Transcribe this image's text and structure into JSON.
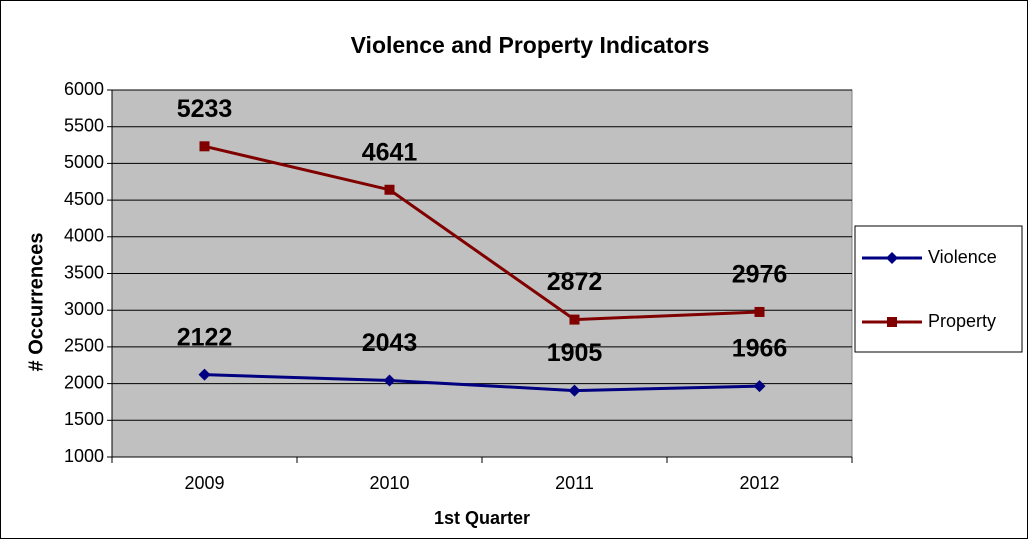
{
  "chart_data": {
    "type": "line",
    "title": "Violence and Property Indicators",
    "x_label": "1st Quarter",
    "y_label": "# Occurrences",
    "categories": [
      "2009",
      "2010",
      "2011",
      "2012"
    ],
    "series": [
      {
        "name": "Violence",
        "color": "#000080",
        "marker": "diamond",
        "values": [
          2122,
          2043,
          1905,
          1966
        ]
      },
      {
        "name": "Property",
        "color": "#800000",
        "marker": "square",
        "values": [
          5233,
          4641,
          2872,
          2976
        ]
      }
    ],
    "ylim": [
      1000,
      6000
    ],
    "yticks": [
      1000,
      1500,
      2000,
      2500,
      3000,
      3500,
      4000,
      4500,
      5000,
      5500,
      6000
    ],
    "grid": true,
    "legend": "right"
  }
}
